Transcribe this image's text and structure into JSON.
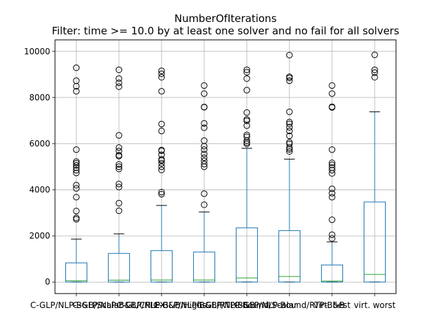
{
  "chart_data": {
    "type": "boxplot",
    "title": "NumberOfIterations",
    "subtitle": "Filter: time >= 10.0 by at least one solver and no fail for all solvers",
    "xlabel": "",
    "ylabel": "",
    "ylim": [
      -500,
      10500
    ],
    "y_ticks": [
      0,
      2000,
      4000,
      6000,
      8000,
      10000
    ],
    "y_tick_labels": [
      "0",
      "2000",
      "4000",
      "6000",
      "8000",
      "10000"
    ],
    "grid": true,
    "colors": {
      "box": "#1f77b4",
      "whisker": "#1f77b4",
      "cap": "#000000",
      "median": "#2ca02c",
      "grid": "#b0b0b0",
      "outlier": "#000000"
    },
    "categories": [
      "C-GLP/NLP-B&B/Scalar",
      "C-GLP/NLP-B&B/CPLEX",
      "C-GLP/NLP-B&B/Highs",
      "C-GLP/NLP-B&B/RTP-B&B",
      "C-GLP/NLP-Bound/Scalar",
      "C-GLP/NLP-Bound/RTP-B&B",
      "virt. best",
      "virt. worst"
    ],
    "tick_labels_visible": [
      "C-GLP/NLP-B&B/Scalar",
      "C-GLP/NLP-B&B/CPLEX",
      "C-GLP/NLP-B&B/Highs",
      "C-GLP/NLP-B&B/RTP-B&B",
      "C-GLP/NLP-Bound/Scalar",
      "C-GLP/NLP-Bound/RTP-B&B",
      "virt. best",
      "virt. worst"
    ],
    "boxes": [
      {
        "min": 0,
        "q1": 0,
        "median": 60,
        "q3": 830,
        "whisker_high": 1860,
        "outliers": [
          2720,
          2780,
          3080,
          3680,
          4060,
          4200,
          4730,
          4850,
          4960,
          5060,
          5150,
          5220,
          5740,
          8270,
          8490,
          8730,
          9290
        ]
      },
      {
        "min": 0,
        "q1": 0,
        "median": 80,
        "q3": 1240,
        "whisker_high": 2090,
        "outliers": [
          3090,
          3420,
          4120,
          4250,
          4900,
          5000,
          5100,
          5460,
          5500,
          5680,
          5830,
          6360,
          8470,
          8640,
          8820,
          9200
        ]
      },
      {
        "min": 0,
        "q1": 0,
        "median": 90,
        "q3": 1360,
        "whisker_high": 3320,
        "outliers": [
          3810,
          3900,
          4860,
          5000,
          5150,
          5270,
          5320,
          5520,
          5690,
          5720,
          6550,
          6850,
          8270,
          8880,
          9030,
          9160
        ]
      },
      {
        "min": 0,
        "q1": 0,
        "median": 90,
        "q3": 1300,
        "whisker_high": 3040,
        "outliers": [
          3350,
          3830,
          5000,
          5110,
          5250,
          5390,
          5550,
          5740,
          5890,
          6130,
          6690,
          6880,
          7580,
          7590,
          8170,
          8520
        ]
      },
      {
        "min": 0,
        "q1": 0,
        "median": 180,
        "q3": 2350,
        "whisker_high": 5800,
        "outliers": [
          5990,
          6050,
          6130,
          6300,
          6380,
          6780,
          6990,
          7050,
          7350,
          8320,
          8820,
          9100,
          9200
        ]
      },
      {
        "min": 0,
        "q1": 0,
        "median": 240,
        "q3": 2230,
        "whisker_high": 5330,
        "outliers": [
          5660,
          5750,
          5820,
          5990,
          6060,
          6340,
          6550,
          6710,
          6860,
          6940,
          7380,
          8730,
          8850,
          8900,
          9840
        ]
      },
      {
        "min": 0,
        "q1": 0,
        "median": 40,
        "q3": 740,
        "whisker_high": 1740,
        "outliers": [
          1890,
          2050,
          2700,
          3680,
          3850,
          4040,
          4710,
          4850,
          4960,
          5080,
          5170,
          5740,
          7570,
          7600,
          8170,
          8520
        ]
      },
      {
        "min": 0,
        "q1": 0,
        "median": 330,
        "q3": 3470,
        "whisker_high": 7380,
        "outliers": [
          8880,
          9080,
          9200,
          9850
        ]
      }
    ]
  }
}
